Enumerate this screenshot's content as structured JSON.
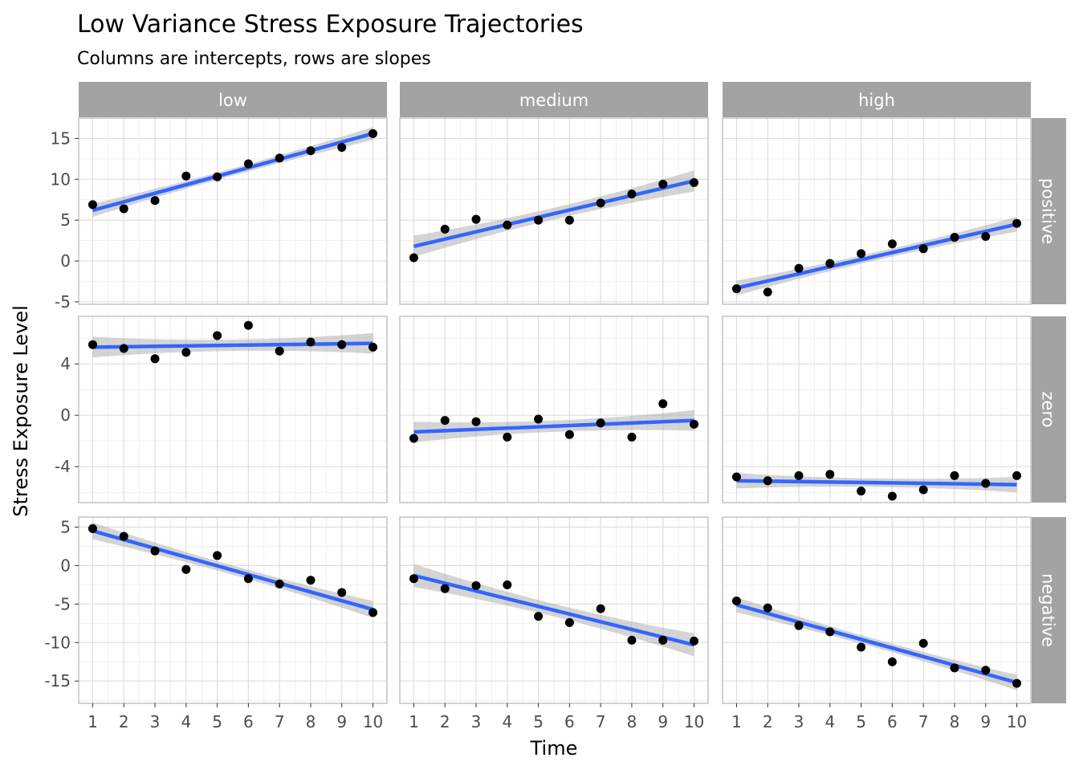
{
  "chart_data": {
    "type": "scatter",
    "title": "Low Variance Stress Exposure Trajectories",
    "subtitle": "Columns are intercepts, rows are slopes",
    "xlabel": "Time",
    "ylabel": "Stress Exposure Level",
    "x": [
      1,
      2,
      3,
      4,
      5,
      6,
      7,
      8,
      9,
      10
    ],
    "x_ticks": [
      1,
      2,
      3,
      4,
      5,
      6,
      7,
      8,
      9,
      10
    ],
    "xlim": [
      0.55,
      10.45
    ],
    "columns": [
      "low",
      "medium",
      "high"
    ],
    "rows": [
      {
        "label": "positive",
        "ylim": [
          -5.3,
          17.5
        ],
        "y_ticks": [
          15,
          10,
          5,
          0,
          -5
        ],
        "y_tick_labels": [
          "15",
          "10",
          "5",
          "0",
          "-5"
        ]
      },
      {
        "label": "zero",
        "ylim": [
          -6.8,
          7.7
        ],
        "y_ticks": [
          4,
          0,
          -4
        ],
        "y_tick_labels": [
          "4",
          "0",
          "-4"
        ]
      },
      {
        "label": "negative",
        "ylim": [
          -17.9,
          6.3
        ],
        "y_ticks": [
          5,
          0,
          -5,
          -10,
          -15
        ],
        "y_tick_labels": [
          "5",
          "0",
          "-5",
          "-10",
          "-15"
        ]
      }
    ],
    "panels": [
      {
        "row": "positive",
        "column": "low",
        "points": [
          6.9,
          6.4,
          7.4,
          10.4,
          10.3,
          11.9,
          12.6,
          13.5,
          13.9,
          15.6
        ],
        "fit": [
          6.2,
          15.6
        ],
        "se": 0.8
      },
      {
        "row": "positive",
        "column": "medium",
        "points": [
          0.4,
          3.9,
          5.1,
          4.4,
          5.0,
          5.0,
          7.1,
          8.2,
          9.4,
          9.6
        ],
        "fit": [
          1.8,
          9.8
        ],
        "se": 1.3
      },
      {
        "row": "positive",
        "column": "high",
        "points": [
          -3.4,
          -3.8,
          -0.9,
          -0.3,
          0.9,
          2.1,
          1.5,
          2.9,
          3.0,
          4.6
        ],
        "fit": [
          -3.3,
          4.5
        ],
        "se": 0.9
      },
      {
        "row": "zero",
        "column": "low",
        "points": [
          5.5,
          5.2,
          4.4,
          4.9,
          6.2,
          7.0,
          5.0,
          5.7,
          5.5,
          5.3
        ],
        "fit": [
          5.3,
          5.6
        ],
        "se": 0.8
      },
      {
        "row": "zero",
        "column": "medium",
        "points": [
          -1.8,
          -0.4,
          -0.5,
          -1.7,
          -0.3,
          -1.5,
          -0.6,
          -1.7,
          0.9,
          -0.7
        ],
        "fit": [
          -1.3,
          -0.4
        ],
        "se": 0.8
      },
      {
        "row": "zero",
        "column": "high",
        "points": [
          -4.8,
          -5.1,
          -4.7,
          -4.6,
          -5.9,
          -6.3,
          -5.8,
          -4.7,
          -5.3,
          -4.7
        ],
        "fit": [
          -5.1,
          -5.4
        ],
        "se": 0.6
      },
      {
        "row": "negative",
        "column": "low",
        "points": [
          4.8,
          3.8,
          1.9,
          -0.5,
          1.3,
          -1.7,
          -2.4,
          -1.9,
          -3.5,
          -6.1
        ],
        "fit": [
          4.5,
          -5.7
        ],
        "se": 1.1
      },
      {
        "row": "negative",
        "column": "medium",
        "points": [
          -1.7,
          -3.0,
          -2.6,
          -2.5,
          -6.6,
          -7.4,
          -5.6,
          -9.7,
          -9.7,
          -9.8
        ],
        "fit": [
          -1.3,
          -10.3
        ],
        "se": 1.5
      },
      {
        "row": "negative",
        "column": "high",
        "points": [
          -4.6,
          -5.5,
          -7.8,
          -8.6,
          -10.6,
          -12.5,
          -10.1,
          -13.3,
          -13.6,
          -15.3
        ],
        "fit": [
          -5.1,
          -15.2
        ],
        "se": 1.0
      }
    ],
    "colors": {
      "point": "#000000",
      "fit_line": "#3366FF",
      "ribbon": "#999999",
      "strip_bg": "#A3A3A3",
      "strip_text": "#FFFFFF",
      "grid_major": "#DEDEDE",
      "grid_minor": "#EDEDED",
      "panel_border": "#B3B3B3",
      "text": "#000000",
      "axis_text": "#4D4D4D"
    },
    "grid": true,
    "legend": "none"
  }
}
